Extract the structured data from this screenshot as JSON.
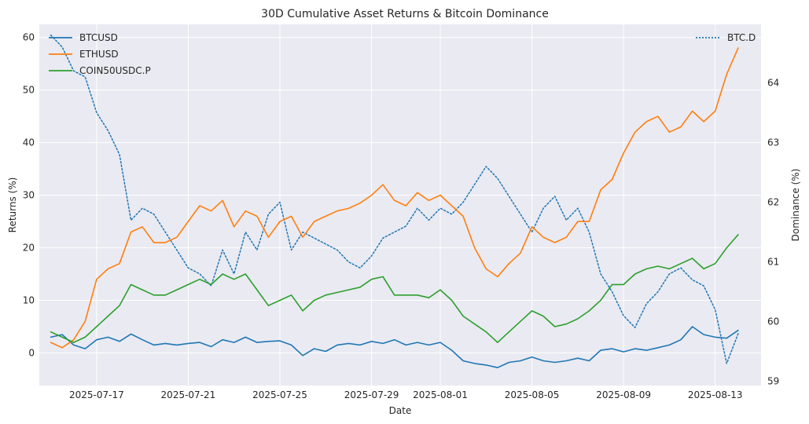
{
  "chart_data": {
    "type": "line",
    "title": "30D Cumulative Asset Returns & Bitcoin Dominance",
    "xlabel": "Date",
    "ylabel": "Returns (%)",
    "y2label": "Dominance (%)",
    "x_range": [
      "2025-07-14T12:00",
      "2025-08-15T00:00"
    ],
    "ylim": [
      -6.2,
      62.5
    ],
    "y2lim": [
      58.93,
      64.98
    ],
    "grid": true,
    "legend_left_placement": "upper-left",
    "legend_right_placement": "upper-right",
    "x_ticks": [
      "2025-07-17",
      "2025-07-21",
      "2025-07-25",
      "2025-07-29",
      "2025-08-01",
      "2025-08-05",
      "2025-08-09",
      "2025-08-13"
    ],
    "y_ticks": [
      0,
      10,
      20,
      30,
      40,
      50,
      60
    ],
    "y2_ticks": [
      59,
      60,
      61,
      62,
      63,
      64
    ],
    "colors": {
      "background": "#eaeaf2",
      "btcusd": "#1f77b4",
      "ethusd": "#ff7f0e",
      "coin50": "#2ca02c",
      "btcd": "#1f77b4"
    },
    "series": [
      {
        "name": "BTCUSD",
        "axis": "left",
        "style": "solid",
        "color": "#1f77b4",
        "x": [
          "2025-07-15T00:00",
          "2025-07-15T12:00",
          "2025-07-16T00:00",
          "2025-07-16T12:00",
          "2025-07-17T00:00",
          "2025-07-17T12:00",
          "2025-07-18T00:00",
          "2025-07-18T12:00",
          "2025-07-19T00:00",
          "2025-07-19T12:00",
          "2025-07-20T00:00",
          "2025-07-20T12:00",
          "2025-07-21T00:00",
          "2025-07-21T12:00",
          "2025-07-22T00:00",
          "2025-07-22T12:00",
          "2025-07-23T00:00",
          "2025-07-23T12:00",
          "2025-07-24T00:00",
          "2025-07-24T12:00",
          "2025-07-25T00:00",
          "2025-07-25T12:00",
          "2025-07-26T00:00",
          "2025-07-26T12:00",
          "2025-07-27T00:00",
          "2025-07-27T12:00",
          "2025-07-28T00:00",
          "2025-07-28T12:00",
          "2025-07-29T00:00",
          "2025-07-29T12:00",
          "2025-07-30T00:00",
          "2025-07-30T12:00",
          "2025-07-31T00:00",
          "2025-07-31T12:00",
          "2025-08-01T00:00",
          "2025-08-01T12:00",
          "2025-08-02T00:00",
          "2025-08-02T12:00",
          "2025-08-03T00:00",
          "2025-08-03T12:00",
          "2025-08-04T00:00",
          "2025-08-04T12:00",
          "2025-08-05T00:00",
          "2025-08-05T12:00",
          "2025-08-06T00:00",
          "2025-08-06T12:00",
          "2025-08-07T00:00",
          "2025-08-07T12:00",
          "2025-08-08T00:00",
          "2025-08-08T12:00",
          "2025-08-09T00:00",
          "2025-08-09T12:00",
          "2025-08-10T00:00",
          "2025-08-10T12:00",
          "2025-08-11T00:00",
          "2025-08-11T12:00",
          "2025-08-12T00:00",
          "2025-08-12T12:00",
          "2025-08-13T00:00",
          "2025-08-13T12:00",
          "2025-08-14T00:00"
        ],
        "values": [
          3.0,
          3.5,
          1.5,
          0.8,
          2.5,
          3.0,
          2.2,
          3.6,
          2.5,
          1.5,
          1.8,
          1.5,
          1.8,
          2.0,
          1.2,
          2.5,
          2.0,
          3.0,
          2.0,
          2.2,
          2.3,
          1.5,
          -0.5,
          0.8,
          0.3,
          1.5,
          1.8,
          1.5,
          2.2,
          1.8,
          2.5,
          1.5,
          2.0,
          1.5,
          2.0,
          0.5,
          -1.5,
          -2.0,
          -2.3,
          -2.8,
          -1.8,
          -1.5,
          -0.8,
          -1.5,
          -1.8,
          -1.5,
          -1.0,
          -1.5,
          0.5,
          0.8,
          0.2,
          0.8,
          0.5,
          1.0,
          1.5,
          2.5,
          5.0,
          3.5,
          3.0,
          2.8,
          4.3
        ]
      },
      {
        "name": "ETHUSD",
        "axis": "left",
        "style": "solid",
        "color": "#ff7f0e",
        "x": [
          "2025-07-15T00:00",
          "2025-07-15T12:00",
          "2025-07-16T00:00",
          "2025-07-16T12:00",
          "2025-07-17T00:00",
          "2025-07-17T12:00",
          "2025-07-18T00:00",
          "2025-07-18T12:00",
          "2025-07-19T00:00",
          "2025-07-19T12:00",
          "2025-07-20T00:00",
          "2025-07-20T12:00",
          "2025-07-21T00:00",
          "2025-07-21T12:00",
          "2025-07-22T00:00",
          "2025-07-22T12:00",
          "2025-07-23T00:00",
          "2025-07-23T12:00",
          "2025-07-24T00:00",
          "2025-07-24T12:00",
          "2025-07-25T00:00",
          "2025-07-25T12:00",
          "2025-07-26T00:00",
          "2025-07-26T12:00",
          "2025-07-27T00:00",
          "2025-07-27T12:00",
          "2025-07-28T00:00",
          "2025-07-28T12:00",
          "2025-07-29T00:00",
          "2025-07-29T12:00",
          "2025-07-30T00:00",
          "2025-07-30T12:00",
          "2025-07-31T00:00",
          "2025-07-31T12:00",
          "2025-08-01T00:00",
          "2025-08-01T12:00",
          "2025-08-02T00:00",
          "2025-08-02T12:00",
          "2025-08-03T00:00",
          "2025-08-03T12:00",
          "2025-08-04T00:00",
          "2025-08-04T12:00",
          "2025-08-05T00:00",
          "2025-08-05T12:00",
          "2025-08-06T00:00",
          "2025-08-06T12:00",
          "2025-08-07T00:00",
          "2025-08-07T12:00",
          "2025-08-08T00:00",
          "2025-08-08T12:00",
          "2025-08-09T00:00",
          "2025-08-09T12:00",
          "2025-08-10T00:00",
          "2025-08-10T12:00",
          "2025-08-11T00:00",
          "2025-08-11T12:00",
          "2025-08-12T00:00",
          "2025-08-12T12:00",
          "2025-08-13T00:00",
          "2025-08-13T12:00",
          "2025-08-14T00:00"
        ],
        "values": [
          2.0,
          1.0,
          2.5,
          6.0,
          14.0,
          16.0,
          17.0,
          23.0,
          24.0,
          21.0,
          21.0,
          22.0,
          25.0,
          28.0,
          27.0,
          29.0,
          24.0,
          27.0,
          26.0,
          22.0,
          25.0,
          26.0,
          22.0,
          25.0,
          26.0,
          27.0,
          27.5,
          28.5,
          30.0,
          32.0,
          29.0,
          28.0,
          30.5,
          29.0,
          30.0,
          28.0,
          26.0,
          20.0,
          16.0,
          14.5,
          17.0,
          19.0,
          24.0,
          22.0,
          21.0,
          22.0,
          25.0,
          25.0,
          31.0,
          33.0,
          38.0,
          42.0,
          44.0,
          45.0,
          42.0,
          43.0,
          46.0,
          44.0,
          46.0,
          53.0,
          58.0
        ]
      },
      {
        "name": "COIN50USDC.P",
        "axis": "left",
        "style": "solid",
        "color": "#2ca02c",
        "x": [
          "2025-07-15T00:00",
          "2025-07-15T12:00",
          "2025-07-16T00:00",
          "2025-07-16T12:00",
          "2025-07-17T00:00",
          "2025-07-17T12:00",
          "2025-07-18T00:00",
          "2025-07-18T12:00",
          "2025-07-19T00:00",
          "2025-07-19T12:00",
          "2025-07-20T00:00",
          "2025-07-20T12:00",
          "2025-07-21T00:00",
          "2025-07-21T12:00",
          "2025-07-22T00:00",
          "2025-07-22T12:00",
          "2025-07-23T00:00",
          "2025-07-23T12:00",
          "2025-07-24T00:00",
          "2025-07-24T12:00",
          "2025-07-25T00:00",
          "2025-07-25T12:00",
          "2025-07-26T00:00",
          "2025-07-26T12:00",
          "2025-07-27T00:00",
          "2025-07-27T12:00",
          "2025-07-28T00:00",
          "2025-07-28T12:00",
          "2025-07-29T00:00",
          "2025-07-29T12:00",
          "2025-07-30T00:00",
          "2025-07-30T12:00",
          "2025-07-31T00:00",
          "2025-07-31T12:00",
          "2025-08-01T00:00",
          "2025-08-01T12:00",
          "2025-08-02T00:00",
          "2025-08-02T12:00",
          "2025-08-03T00:00",
          "2025-08-03T12:00",
          "2025-08-04T00:00",
          "2025-08-04T12:00",
          "2025-08-05T00:00",
          "2025-08-05T12:00",
          "2025-08-06T00:00",
          "2025-08-06T12:00",
          "2025-08-07T00:00",
          "2025-08-07T12:00",
          "2025-08-08T00:00",
          "2025-08-08T12:00",
          "2025-08-09T00:00",
          "2025-08-09T12:00",
          "2025-08-10T00:00",
          "2025-08-10T12:00",
          "2025-08-11T00:00",
          "2025-08-11T12:00",
          "2025-08-12T00:00",
          "2025-08-12T12:00",
          "2025-08-13T00:00",
          "2025-08-13T12:00",
          "2025-08-14T00:00"
        ],
        "values": [
          4.0,
          3.0,
          2.0,
          3.0,
          5.0,
          7.0,
          9.0,
          13.0,
          12.0,
          11.0,
          11.0,
          12.0,
          13.0,
          14.0,
          13.0,
          15.0,
          14.0,
          15.0,
          12.0,
          9.0,
          10.0,
          11.0,
          8.0,
          10.0,
          11.0,
          11.5,
          12.0,
          12.5,
          14.0,
          14.5,
          11.0,
          11.0,
          11.0,
          10.5,
          12.0,
          10.0,
          7.0,
          5.5,
          4.0,
          2.0,
          4.0,
          6.0,
          8.0,
          7.0,
          5.0,
          5.5,
          6.5,
          8.0,
          10.0,
          13.0,
          13.0,
          15.0,
          16.0,
          16.5,
          16.0,
          17.0,
          18.0,
          16.0,
          17.0,
          20.0,
          22.5
        ]
      },
      {
        "name": "BTC.D",
        "axis": "right",
        "style": "dotted",
        "color": "#1f77b4",
        "x": [
          "2025-07-15T00:00",
          "2025-07-15T12:00",
          "2025-07-16T00:00",
          "2025-07-16T12:00",
          "2025-07-17T00:00",
          "2025-07-17T12:00",
          "2025-07-18T00:00",
          "2025-07-18T12:00",
          "2025-07-19T00:00",
          "2025-07-19T12:00",
          "2025-07-20T00:00",
          "2025-07-20T12:00",
          "2025-07-21T00:00",
          "2025-07-21T12:00",
          "2025-07-22T00:00",
          "2025-07-22T12:00",
          "2025-07-23T00:00",
          "2025-07-23T12:00",
          "2025-07-24T00:00",
          "2025-07-24T12:00",
          "2025-07-25T00:00",
          "2025-07-25T12:00",
          "2025-07-26T00:00",
          "2025-07-26T12:00",
          "2025-07-27T00:00",
          "2025-07-27T12:00",
          "2025-07-28T00:00",
          "2025-07-28T12:00",
          "2025-07-29T00:00",
          "2025-07-29T12:00",
          "2025-07-30T00:00",
          "2025-07-30T12:00",
          "2025-07-31T00:00",
          "2025-07-31T12:00",
          "2025-08-01T00:00",
          "2025-08-01T12:00",
          "2025-08-02T00:00",
          "2025-08-02T12:00",
          "2025-08-03T00:00",
          "2025-08-03T12:00",
          "2025-08-04T00:00",
          "2025-08-04T12:00",
          "2025-08-05T00:00",
          "2025-08-05T12:00",
          "2025-08-06T00:00",
          "2025-08-06T12:00",
          "2025-08-07T00:00",
          "2025-08-07T12:00",
          "2025-08-08T00:00",
          "2025-08-08T12:00",
          "2025-08-09T00:00",
          "2025-08-09T12:00",
          "2025-08-10T00:00",
          "2025-08-10T12:00",
          "2025-08-11T00:00",
          "2025-08-11T12:00",
          "2025-08-12T00:00",
          "2025-08-12T12:00",
          "2025-08-13T00:00",
          "2025-08-13T12:00",
          "2025-08-14T00:00"
        ],
        "values": [
          64.8,
          64.6,
          64.2,
          64.1,
          63.5,
          63.2,
          62.8,
          61.7,
          61.9,
          61.8,
          61.5,
          61.2,
          60.9,
          60.8,
          60.6,
          61.2,
          60.8,
          61.5,
          61.2,
          61.8,
          62.0,
          61.2,
          61.5,
          61.4,
          61.3,
          61.2,
          61.0,
          60.9,
          61.1,
          61.4,
          61.5,
          61.6,
          61.9,
          61.7,
          61.9,
          61.8,
          62.0,
          62.3,
          62.6,
          62.4,
          62.1,
          61.8,
          61.5,
          61.9,
          62.1,
          61.7,
          61.9,
          61.5,
          60.8,
          60.5,
          60.1,
          59.9,
          60.3,
          60.5,
          60.8,
          60.9,
          60.7,
          60.6,
          60.2,
          59.3,
          59.8
        ]
      }
    ]
  }
}
